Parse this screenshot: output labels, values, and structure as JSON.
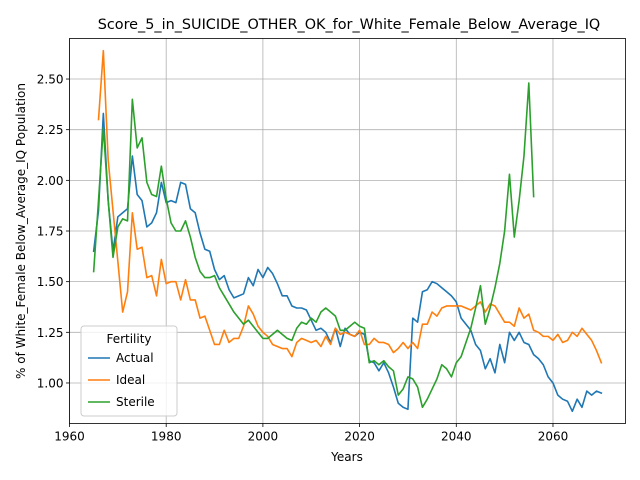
{
  "chart_data": {
    "type": "line",
    "title": "Score_5_in_SUICIDE_OTHER_OK_for_White_Female_Below_Average_IQ",
    "xlabel": "Years",
    "ylabel": "% of White_Female Below_Average_IQ Population",
    "xlim": [
      1960,
      2075
    ],
    "ylim": [
      0.8,
      2.7
    ],
    "xticks": [
      1960,
      1980,
      2000,
      2020,
      2040,
      2060
    ],
    "yticks": [
      1.0,
      1.25,
      1.5,
      1.75,
      2.0,
      2.25,
      2.5
    ],
    "ytick_labels": [
      "1.00",
      "1.25",
      "1.50",
      "1.75",
      "2.00",
      "2.25",
      "2.50"
    ],
    "grid": true,
    "legend": {
      "title": "Fertility",
      "placement": "lower-left"
    },
    "series": [
      {
        "name": "Actual",
        "color": "#1f77b4",
        "x": [
          1965,
          1966,
          1967,
          1968,
          1969,
          1970,
          1971,
          1972,
          1973,
          1974,
          1975,
          1976,
          1977,
          1978,
          1979,
          1980,
          1981,
          1982,
          1983,
          1984,
          1985,
          1986,
          1987,
          1988,
          1989,
          1990,
          1991,
          1992,
          1993,
          1994,
          1995,
          1996,
          1997,
          1998,
          1999,
          2000,
          2001,
          2002,
          2003,
          2004,
          2005,
          2006,
          2007,
          2008,
          2009,
          2010,
          2011,
          2012,
          2013,
          2014,
          2015,
          2016,
          2017,
          2018,
          2019,
          2020,
          2021,
          2022,
          2023,
          2024,
          2025,
          2026,
          2027,
          2028,
          2029,
          2030,
          2031,
          2032,
          2033,
          2034,
          2035,
          2036,
          2037,
          2038,
          2039,
          2040,
          2041,
          2042,
          2043,
          2044,
          2045,
          2046,
          2047,
          2048,
          2049,
          2050,
          2051,
          2052,
          2053,
          2054,
          2055,
          2056,
          2057,
          2058,
          2059,
          2060,
          2061,
          2062,
          2063,
          2064,
          2065,
          2066,
          2067,
          2068,
          2069,
          2070
        ],
        "y": [
          1.65,
          1.85,
          2.33,
          1.9,
          1.65,
          1.82,
          1.84,
          1.86,
          2.12,
          1.93,
          1.9,
          1.77,
          1.79,
          1.84,
          1.99,
          1.89,
          1.9,
          1.89,
          1.99,
          1.98,
          1.86,
          1.84,
          1.74,
          1.66,
          1.65,
          1.56,
          1.51,
          1.53,
          1.46,
          1.42,
          1.43,
          1.44,
          1.52,
          1.48,
          1.56,
          1.52,
          1.57,
          1.54,
          1.49,
          1.43,
          1.43,
          1.38,
          1.37,
          1.37,
          1.36,
          1.31,
          1.26,
          1.27,
          1.25,
          1.2,
          1.27,
          1.18,
          1.27,
          1.24,
          1.23,
          1.25,
          1.24,
          1.11,
          1.1,
          1.06,
          1.1,
          1.05,
          0.98,
          0.9,
          0.88,
          0.87,
          1.32,
          1.3,
          1.45,
          1.46,
          1.5,
          1.49,
          1.47,
          1.45,
          1.43,
          1.4,
          1.32,
          1.29,
          1.26,
          1.19,
          1.16,
          1.07,
          1.12,
          1.05,
          1.19,
          1.1,
          1.25,
          1.21,
          1.25,
          1.2,
          1.19,
          1.14,
          1.12,
          1.09,
          1.03,
          1.0,
          0.94,
          0.92,
          0.91,
          0.86,
          0.92,
          0.88,
          0.96,
          0.94,
          0.96,
          0.95
        ]
      },
      {
        "name": "Ideal",
        "color": "#ff7f0e",
        "x": [
          1966,
          1967,
          1968,
          1969,
          1970,
          1971,
          1972,
          1973,
          1974,
          1975,
          1976,
          1977,
          1978,
          1979,
          1980,
          1981,
          1982,
          1983,
          1984,
          1985,
          1986,
          1987,
          1988,
          1989,
          1990,
          1991,
          1992,
          1993,
          1994,
          1995,
          1996,
          1997,
          1998,
          1999,
          2000,
          2001,
          2002,
          2003,
          2004,
          2005,
          2006,
          2007,
          2008,
          2009,
          2010,
          2011,
          2012,
          2013,
          2014,
          2015,
          2016,
          2017,
          2018,
          2019,
          2020,
          2021,
          2022,
          2023,
          2024,
          2025,
          2026,
          2027,
          2028,
          2029,
          2030,
          2031,
          2032,
          2033,
          2034,
          2035,
          2036,
          2037,
          2038,
          2039,
          2040,
          2041,
          2042,
          2043,
          2044,
          2045,
          2046,
          2047,
          2048,
          2049,
          2050,
          2051,
          2052,
          2053,
          2054,
          2055,
          2056,
          2057,
          2058,
          2059,
          2060,
          2061,
          2062,
          2063,
          2064,
          2065,
          2066,
          2067,
          2068,
          2069,
          2070
        ],
        "y": [
          2.3,
          2.64,
          2.1,
          1.85,
          1.6,
          1.35,
          1.45,
          1.84,
          1.66,
          1.67,
          1.52,
          1.53,
          1.43,
          1.61,
          1.49,
          1.5,
          1.5,
          1.41,
          1.51,
          1.41,
          1.41,
          1.32,
          1.33,
          1.26,
          1.19,
          1.19,
          1.26,
          1.2,
          1.22,
          1.22,
          1.28,
          1.38,
          1.34,
          1.28,
          1.25,
          1.23,
          1.19,
          1.18,
          1.17,
          1.17,
          1.13,
          1.2,
          1.22,
          1.21,
          1.2,
          1.21,
          1.18,
          1.23,
          1.19,
          1.27,
          1.24,
          1.25,
          1.24,
          1.23,
          1.26,
          1.19,
          1.19,
          1.22,
          1.2,
          1.2,
          1.19,
          1.15,
          1.17,
          1.2,
          1.17,
          1.2,
          1.17,
          1.29,
          1.29,
          1.35,
          1.33,
          1.37,
          1.38,
          1.38,
          1.38,
          1.38,
          1.37,
          1.36,
          1.38,
          1.4,
          1.35,
          1.39,
          1.38,
          1.34,
          1.3,
          1.3,
          1.28,
          1.37,
          1.32,
          1.34,
          1.26,
          1.25,
          1.23,
          1.23,
          1.21,
          1.24,
          1.2,
          1.21,
          1.25,
          1.23,
          1.27,
          1.24,
          1.21,
          1.16,
          1.1
        ]
      },
      {
        "name": "Sterile",
        "color": "#2ca02c",
        "x": [
          1965,
          1966,
          1967,
          1968,
          1969,
          1970,
          1971,
          1972,
          1973,
          1974,
          1975,
          1976,
          1977,
          1978,
          1979,
          1980,
          1981,
          1982,
          1983,
          1984,
          1985,
          1986,
          1987,
          1988,
          1989,
          1990,
          1991,
          1992,
          1993,
          1994,
          1995,
          1996,
          1997,
          1998,
          1999,
          2000,
          2001,
          2002,
          2003,
          2004,
          2005,
          2006,
          2007,
          2008,
          2009,
          2010,
          2011,
          2012,
          2013,
          2014,
          2015,
          2016,
          2017,
          2018,
          2019,
          2020,
          2021,
          2022,
          2023,
          2024,
          2025,
          2026,
          2027,
          2028,
          2029,
          2030,
          2031,
          2032,
          2033,
          2034,
          2035,
          2036,
          2037,
          2038,
          2039,
          2040,
          2041,
          2042,
          2043,
          2044,
          2045,
          2046,
          2047,
          2048,
          2049,
          2050,
          2051,
          2052,
          2053,
          2054,
          2055,
          2056
        ],
        "y": [
          1.55,
          1.9,
          2.26,
          1.9,
          1.62,
          1.77,
          1.81,
          1.8,
          2.4,
          2.16,
          2.21,
          1.99,
          1.93,
          1.92,
          2.07,
          1.91,
          1.79,
          1.75,
          1.75,
          1.8,
          1.72,
          1.62,
          1.55,
          1.52,
          1.52,
          1.53,
          1.47,
          1.43,
          1.39,
          1.35,
          1.32,
          1.29,
          1.31,
          1.28,
          1.25,
          1.22,
          1.22,
          1.24,
          1.26,
          1.24,
          1.22,
          1.21,
          1.27,
          1.3,
          1.29,
          1.32,
          1.3,
          1.35,
          1.37,
          1.35,
          1.33,
          1.26,
          1.26,
          1.28,
          1.3,
          1.28,
          1.27,
          1.1,
          1.11,
          1.09,
          1.11,
          1.08,
          1.06,
          0.94,
          0.97,
          1.03,
          1.02,
          0.98,
          0.88,
          0.92,
          0.97,
          1.02,
          1.09,
          1.07,
          1.03,
          1.1,
          1.13,
          1.2,
          1.27,
          1.37,
          1.48,
          1.29,
          1.37,
          1.47,
          1.59,
          1.75,
          2.03,
          1.72,
          1.9,
          2.12,
          2.48,
          1.92
        ]
      }
    ]
  }
}
